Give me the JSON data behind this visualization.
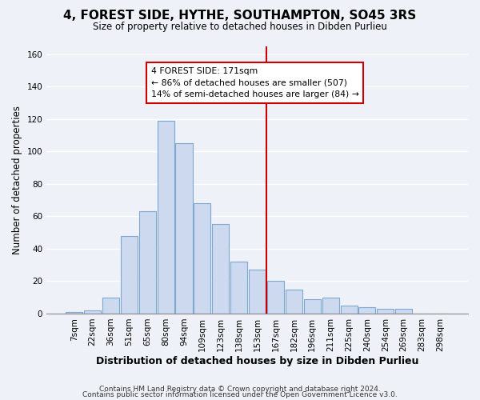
{
  "title": "4, FOREST SIDE, HYTHE, SOUTHAMPTON, SO45 3RS",
  "subtitle": "Size of property relative to detached houses in Dibden Purlieu",
  "xlabel": "Distribution of detached houses by size in Dibden Purlieu",
  "ylabel": "Number of detached properties",
  "bar_labels": [
    "7sqm",
    "22sqm",
    "36sqm",
    "51sqm",
    "65sqm",
    "80sqm",
    "94sqm",
    "109sqm",
    "123sqm",
    "138sqm",
    "153sqm",
    "167sqm",
    "182sqm",
    "196sqm",
    "211sqm",
    "225sqm",
    "240sqm",
    "254sqm",
    "269sqm",
    "283sqm",
    "298sqm"
  ],
  "bar_values": [
    1,
    2,
    10,
    48,
    63,
    119,
    105,
    68,
    55,
    32,
    27,
    20,
    15,
    9,
    10,
    5,
    4,
    3,
    3,
    0,
    0
  ],
  "bar_color": "#ccd9ef",
  "bar_edge_color": "#7fa8d0",
  "vline_color": "#cc0000",
  "annotation_title": "4 FOREST SIDE: 171sqm",
  "annotation_line1": "← 86% of detached houses are smaller (507)",
  "annotation_line2": "14% of semi-detached houses are larger (84) →",
  "annotation_box_color": "#ffffff",
  "annotation_box_edge": "#cc0000",
  "ylim": [
    0,
    165
  ],
  "yticks": [
    0,
    20,
    40,
    60,
    80,
    100,
    120,
    140,
    160
  ],
  "footer_line1": "Contains HM Land Registry data © Crown copyright and database right 2024.",
  "footer_line2": "Contains public sector information licensed under the Open Government Licence v3.0.",
  "bg_color": "#eef2f8",
  "grid_color": "#ffffff",
  "title_fontsize": 11,
  "subtitle_fontsize": 8.5,
  "xlabel_fontsize": 9,
  "ylabel_fontsize": 8.5,
  "tick_fontsize": 7.5,
  "footer_fontsize": 6.5
}
